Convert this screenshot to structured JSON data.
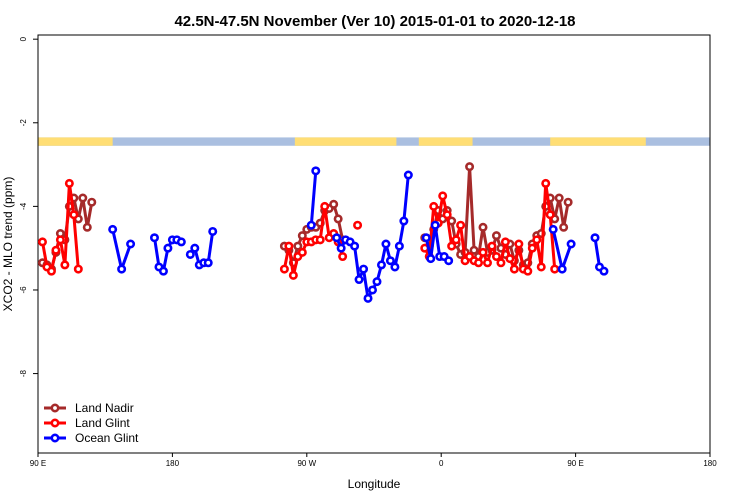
{
  "chart_data": {
    "type": "line",
    "title": "42.5N-47.5N November (Ver 10)   2015-01-01 to 2020-12-18",
    "xlabel": "Longitude",
    "ylabel": "XCO2 - MLO trend (ppm)",
    "xlim": [
      90,
      540
    ],
    "ylim": [
      -9.9,
      0.1
    ],
    "x_ticks": [
      {
        "value": 90,
        "label": "90 E"
      },
      {
        "value": 180,
        "label": "180"
      },
      {
        "value": 270,
        "label": "90 W"
      },
      {
        "value": 360,
        "label": "0"
      },
      {
        "value": 450,
        "label": "90 E"
      },
      {
        "value": 540,
        "label": "180"
      }
    ],
    "y_ticks": [
      {
        "value": 0,
        "label": "0"
      },
      {
        "value": -2,
        "label": "-2"
      },
      {
        "value": -4,
        "label": "-4"
      },
      {
        "value": -6,
        "label": "-6"
      },
      {
        "value": -8,
        "label": "-8"
      }
    ],
    "grid": false,
    "legend_position": "bottom-left",
    "land_sea_strip": {
      "y_range": [
        -2.55,
        -2.35
      ],
      "land_color": "#FFDE75",
      "ocean_color": "#AABFE0",
      "land_segments": [
        [
          90,
          140
        ],
        [
          262,
          330
        ],
        [
          345,
          381
        ],
        [
          433,
          497
        ]
      ]
    },
    "series": [
      {
        "name": "Land Nadir",
        "color": "#A52A2A",
        "segments": [
          [
            [
              93,
              -5.35
            ],
            [
              96,
              -5.4
            ],
            [
              99,
              -5.5
            ],
            [
              102,
              -5.1
            ],
            [
              105,
              -4.65
            ],
            [
              108,
              -4.8
            ],
            [
              111,
              -4.0
            ],
            [
              114,
              -3.8
            ],
            [
              117,
              -4.3
            ],
            [
              120,
              -3.8
            ],
            [
              123,
              -4.5
            ],
            [
              126,
              -3.9
            ]
          ],
          [
            [
              255,
              -4.95
            ],
            [
              258,
              -5.05
            ],
            [
              261,
              -5.35
            ],
            [
              264,
              -4.95
            ],
            [
              267,
              -4.7
            ],
            [
              270,
              -4.55
            ],
            [
              273,
              -4.5
            ],
            [
              276,
              -4.5
            ],
            [
              279,
              -4.4
            ],
            [
              282,
              -4.1
            ],
            [
              285,
              -4.05
            ],
            [
              288,
              -3.95
            ],
            [
              291,
              -4.3
            ],
            [
              294,
              -4.8
            ]
          ],
          [
            [
              349,
              -4.75
            ],
            [
              352,
              -4.95
            ],
            [
              355,
              -4.55
            ],
            [
              358,
              -4.1
            ],
            [
              361,
              -4.3
            ],
            [
              364,
              -4.1
            ],
            [
              367,
              -4.35
            ],
            [
              370,
              -4.9
            ],
            [
              373,
              -5.15
            ],
            [
              376,
              -5.1
            ],
            [
              379,
              -3.05
            ],
            [
              382,
              -5.05
            ],
            [
              385,
              -5.2
            ],
            [
              388,
              -4.5
            ],
            [
              391,
              -5.1
            ],
            [
              394,
              -5.05
            ],
            [
              397,
              -4.7
            ],
            [
              400,
              -5.0
            ],
            [
              403,
              -5.15
            ],
            [
              406,
              -4.9
            ],
            [
              409,
              -5.3
            ],
            [
              412,
              -5.05
            ],
            [
              415,
              -5.4
            ],
            [
              418,
              -5.35
            ],
            [
              421,
              -4.9
            ],
            [
              424,
              -4.7
            ],
            [
              427,
              -4.65
            ],
            [
              430,
              -4.0
            ],
            [
              433,
              -3.8
            ],
            [
              436,
              -4.3
            ],
            [
              439,
              -3.8
            ],
            [
              442,
              -4.5
            ],
            [
              445,
              -3.9
            ]
          ]
        ]
      },
      {
        "name": "Land Glint",
        "color": "#FF0000",
        "segments": [
          [
            [
              93,
              -4.85
            ],
            [
              96,
              -5.45
            ],
            [
              99,
              -5.55
            ],
            [
              102,
              -5.05
            ],
            [
              105,
              -4.8
            ],
            [
              108,
              -5.4
            ],
            [
              111,
              -3.45
            ],
            [
              114,
              -4.2
            ],
            [
              117,
              -5.5
            ]
          ],
          [
            [
              255,
              -5.5
            ],
            [
              258,
              -4.95
            ],
            [
              261,
              -5.65
            ],
            [
              264,
              -5.2
            ],
            [
              267,
              -5.1
            ],
            [
              270,
              -4.85
            ],
            [
              273,
              -4.85
            ],
            [
              276,
              -4.8
            ],
            [
              279,
              -4.8
            ],
            [
              282,
              -4.0
            ],
            [
              285,
              -4.75
            ],
            [
              288,
              -4.65
            ],
            [
              291,
              -4.85
            ],
            [
              294,
              -5.2
            ]
          ],
          [
            [
              304,
              -4.45
            ]
          ],
          [
            [
              349,
              -5.0
            ],
            [
              352,
              -5.2
            ],
            [
              355,
              -4.0
            ],
            [
              358,
              -4.4
            ],
            [
              361,
              -3.75
            ],
            [
              364,
              -4.2
            ],
            [
              367,
              -4.95
            ],
            [
              370,
              -4.8
            ],
            [
              373,
              -4.45
            ],
            [
              376,
              -5.3
            ],
            [
              379,
              -5.2
            ],
            [
              382,
              -5.3
            ],
            [
              385,
              -5.35
            ],
            [
              388,
              -5.1
            ],
            [
              391,
              -5.35
            ],
            [
              394,
              -4.95
            ],
            [
              397,
              -5.2
            ],
            [
              400,
              -5.35
            ],
            [
              403,
              -4.85
            ],
            [
              406,
              -5.25
            ],
            [
              409,
              -5.5
            ],
            [
              412,
              -4.9
            ],
            [
              415,
              -5.5
            ],
            [
              418,
              -5.55
            ],
            [
              421,
              -5.0
            ],
            [
              424,
              -4.8
            ],
            [
              427,
              -5.45
            ],
            [
              430,
              -3.45
            ],
            [
              433,
              -4.2
            ],
            [
              436,
              -5.5
            ]
          ]
        ]
      },
      {
        "name": "Ocean Glint",
        "color": "#0000FF",
        "segments": [
          [
            [
              140,
              -4.55
            ],
            [
              146,
              -5.5
            ],
            [
              152,
              -4.9
            ]
          ],
          [
            [
              168,
              -4.75
            ],
            [
              171,
              -5.45
            ],
            [
              174,
              -5.55
            ],
            [
              177,
              -5.0
            ],
            [
              180,
              -4.8
            ],
            [
              183,
              -4.8
            ],
            [
              186,
              -4.85
            ]
          ],
          [
            [
              192,
              -5.15
            ],
            [
              195,
              -5.0
            ],
            [
              198,
              -5.4
            ],
            [
              201,
              -5.35
            ],
            [
              204,
              -5.35
            ],
            [
              207,
              -4.6
            ]
          ],
          [
            [
              273,
              -4.45
            ],
            [
              276,
              -3.15
            ]
          ],
          [
            [
              290,
              -4.75
            ],
            [
              293,
              -5.0
            ],
            [
              296,
              -4.8
            ],
            [
              299,
              -4.85
            ],
            [
              302,
              -4.95
            ],
            [
              305,
              -5.75
            ],
            [
              308,
              -5.5
            ],
            [
              311,
              -6.2
            ],
            [
              314,
              -6.0
            ],
            [
              317,
              -5.8
            ],
            [
              320,
              -5.4
            ],
            [
              323,
              -4.9
            ],
            [
              326,
              -5.3
            ],
            [
              329,
              -5.45
            ],
            [
              332,
              -4.95
            ],
            [
              335,
              -4.35
            ],
            [
              338,
              -3.25
            ]
          ],
          [
            [
              350,
              -4.75
            ],
            [
              353,
              -5.25
            ],
            [
              356,
              -4.45
            ],
            [
              359,
              -5.2
            ],
            [
              362,
              -5.2
            ],
            [
              365,
              -5.3
            ]
          ],
          [
            [
              435,
              -4.55
            ],
            [
              441,
              -5.5
            ],
            [
              447,
              -4.9
            ]
          ],
          [
            [
              463,
              -4.75
            ],
            [
              466,
              -5.45
            ],
            [
              469,
              -5.55
            ]
          ]
        ]
      }
    ]
  }
}
